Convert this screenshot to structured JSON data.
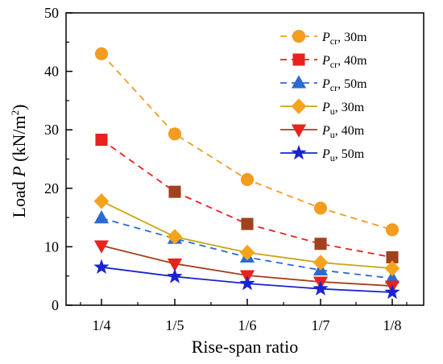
{
  "chart_data": {
    "type": "line",
    "title": "",
    "xlabel": "Rise-span ratio",
    "ylabel_prefix": "Load ",
    "ylabel_var": "P",
    "ylabel_unit_open": " (kN/m",
    "ylabel_unit_sup": "2",
    "ylabel_unit_close": ")",
    "categories": [
      "1/4",
      "1/5",
      "1/6",
      "1/7",
      "1/8"
    ],
    "ylim": [
      0,
      50
    ],
    "yticks": [
      0,
      10,
      20,
      30,
      40,
      50
    ],
    "legend_position": "top-right",
    "grid": false,
    "series": [
      {
        "var": "P",
        "sub": "cr",
        "suffix": ", 30m",
        "values": [
          43.0,
          29.3,
          21.5,
          16.6,
          12.9
        ],
        "color": "#f39c1f",
        "marker_color": "#f39c1f",
        "dash": true,
        "marker": "circle"
      },
      {
        "var": "P",
        "sub": "cr",
        "suffix": ", 40m",
        "values": [
          28.3,
          19.4,
          13.9,
          10.5,
          8.2
        ],
        "color": "#e8221e",
        "marker_color": "#a0421e",
        "first_marker_color": "#e8221e",
        "dash": true,
        "marker": "square"
      },
      {
        "var": "P",
        "sub": "cr",
        "suffix": ", 50m",
        "values": [
          14.9,
          11.4,
          8.2,
          6.0,
          4.6
        ],
        "color": "#2a6bd1",
        "marker_color": "#2a6bd1",
        "dash": true,
        "marker": "triangle-up"
      },
      {
        "var": "P",
        "sub": "u",
        "suffix": ", 30m",
        "values": [
          17.8,
          11.7,
          9.0,
          7.3,
          6.3
        ],
        "color": "#c9a516",
        "marker_color": "#f4a31c",
        "dash": false,
        "marker": "diamond"
      },
      {
        "var": "P",
        "sub": "u",
        "suffix": ", 40m",
        "values": [
          10.2,
          7.1,
          5.1,
          4.0,
          3.3
        ],
        "color": "#a0421e",
        "marker_color": "#e8221e",
        "dash": false,
        "marker": "triangle-down"
      },
      {
        "var": "P",
        "sub": "u",
        "suffix": ", 50m",
        "values": [
          6.5,
          4.9,
          3.7,
          2.8,
          2.2
        ],
        "color": "#1a24d0",
        "marker_color": "#1a24d0",
        "dash": false,
        "marker": "star"
      }
    ]
  }
}
